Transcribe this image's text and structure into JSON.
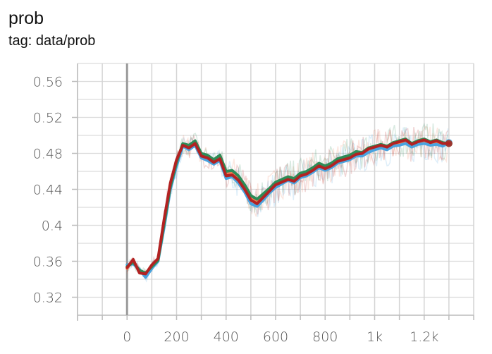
{
  "card": {
    "title": "prob",
    "tag": "tag: data/prob"
  },
  "chart_data": {
    "type": "line",
    "title": "prob",
    "subtitle": "tag: data/prob",
    "xlabel": "",
    "ylabel": "",
    "xlim": [
      -200,
      1400
    ],
    "ylim": [
      0.3,
      0.58
    ],
    "x_ticks": [
      0,
      200,
      400,
      600,
      800,
      1000,
      1200
    ],
    "x_tick_labels": [
      "0",
      "200",
      "400",
      "600",
      "800",
      "1k",
      "1.2k"
    ],
    "y_ticks": [
      0.32,
      0.36,
      0.4,
      0.44,
      0.48,
      0.52,
      0.56
    ],
    "y_tick_labels": [
      "0.32",
      "0.36",
      "0.4",
      "0.44",
      "0.48",
      "0.52",
      "0.56"
    ],
    "grid": true,
    "series": [
      {
        "color": "#f07a52",
        "x": [
          0,
          25,
          50,
          75,
          100,
          125,
          150,
          175,
          200,
          225,
          250,
          275,
          300,
          325,
          350,
          375,
          400,
          425,
          450,
          475,
          500,
          525,
          550,
          575,
          600,
          625,
          650,
          675,
          700,
          725,
          750,
          775,
          800,
          825,
          850,
          875,
          900,
          925,
          950,
          975,
          1000,
          1025,
          1050,
          1075,
          1100,
          1125,
          1150,
          1175,
          1200,
          1225,
          1250,
          1275,
          1300
        ],
        "y": [
          0.352,
          0.361,
          0.348,
          0.345,
          0.355,
          0.362,
          0.405,
          0.445,
          0.472,
          0.49,
          0.487,
          0.492,
          0.478,
          0.476,
          0.471,
          0.475,
          0.457,
          0.458,
          0.452,
          0.442,
          0.43,
          0.426,
          0.432,
          0.439,
          0.446,
          0.449,
          0.452,
          0.45,
          0.456,
          0.458,
          0.462,
          0.467,
          0.464,
          0.467,
          0.472,
          0.474,
          0.476,
          0.48,
          0.479,
          0.484,
          0.486,
          0.488,
          0.486,
          0.49,
          0.492,
          0.494,
          0.489,
          0.492,
          0.494,
          0.491,
          0.493,
          0.49,
          0.491
        ]
      },
      {
        "color": "#4aa3df",
        "x": [
          0,
          25,
          50,
          75,
          100,
          125,
          150,
          175,
          200,
          225,
          250,
          275,
          300,
          325,
          350,
          375,
          400,
          425,
          450,
          475,
          500,
          525,
          550,
          575,
          600,
          625,
          650,
          675,
          700,
          725,
          750,
          775,
          800,
          825,
          850,
          875,
          900,
          925,
          950,
          975,
          1000,
          1025,
          1050,
          1075,
          1100,
          1125,
          1150,
          1175,
          1200,
          1225,
          1250,
          1275,
          1300
        ],
        "y": [
          0.356,
          0.357,
          0.351,
          0.342,
          0.352,
          0.36,
          0.398,
          0.44,
          0.466,
          0.488,
          0.484,
          0.489,
          0.475,
          0.472,
          0.468,
          0.472,
          0.452,
          0.454,
          0.447,
          0.437,
          0.424,
          0.421,
          0.428,
          0.436,
          0.442,
          0.446,
          0.45,
          0.447,
          0.453,
          0.455,
          0.459,
          0.464,
          0.461,
          0.464,
          0.469,
          0.471,
          0.473,
          0.477,
          0.477,
          0.481,
          0.484,
          0.486,
          0.484,
          0.488,
          0.489,
          0.491,
          0.487,
          0.49,
          0.491,
          0.489,
          0.49,
          0.488,
          0.492
        ]
      },
      {
        "color": "#2e8b57",
        "x": [
          0,
          25,
          50,
          75,
          100,
          125,
          150,
          175,
          200,
          225,
          250,
          275,
          300,
          325,
          350,
          375,
          400,
          425,
          450,
          475,
          500,
          525,
          550,
          575,
          600,
          625,
          650,
          675,
          700,
          725,
          750,
          775,
          800,
          825,
          850,
          875,
          900,
          925,
          950,
          975,
          1000,
          1025,
          1050,
          1075,
          1100,
          1125,
          1150,
          1175,
          1200,
          1225,
          1250,
          1275,
          1300
        ],
        "y": [
          0.354,
          0.359,
          0.35,
          0.347,
          0.354,
          0.361,
          0.402,
          0.443,
          0.47,
          0.491,
          0.489,
          0.494,
          0.48,
          0.478,
          0.473,
          0.478,
          0.46,
          0.461,
          0.455,
          0.445,
          0.433,
          0.429,
          0.435,
          0.441,
          0.448,
          0.451,
          0.454,
          0.452,
          0.458,
          0.46,
          0.464,
          0.469,
          0.466,
          0.469,
          0.474,
          0.476,
          0.478,
          0.482,
          0.481,
          0.486,
          0.488,
          0.49,
          0.488,
          0.492,
          0.494,
          0.496,
          0.491,
          0.494,
          0.496,
          0.493,
          0.495,
          0.492,
          0.491
        ]
      },
      {
        "color": "#b22222",
        "x": [
          0,
          25,
          50,
          75,
          100,
          125,
          150,
          175,
          200,
          225,
          250,
          275,
          300,
          325,
          350,
          375,
          400,
          425,
          450,
          475,
          500,
          525,
          550,
          575,
          600,
          625,
          650,
          675,
          700,
          725,
          750,
          775,
          800,
          825,
          850,
          875,
          900,
          925,
          950,
          975,
          1000,
          1025,
          1050,
          1075,
          1100,
          1125,
          1150,
          1175,
          1200,
          1225,
          1250,
          1275,
          1300
        ],
        "y": [
          0.353,
          0.362,
          0.347,
          0.346,
          0.356,
          0.363,
          0.407,
          0.447,
          0.473,
          0.489,
          0.486,
          0.491,
          0.477,
          0.475,
          0.47,
          0.474,
          0.455,
          0.456,
          0.45,
          0.44,
          0.428,
          0.424,
          0.431,
          0.438,
          0.445,
          0.448,
          0.451,
          0.449,
          0.455,
          0.457,
          0.461,
          0.466,
          0.463,
          0.466,
          0.471,
          0.473,
          0.475,
          0.479,
          0.48,
          0.485,
          0.487,
          0.489,
          0.487,
          0.491,
          0.493,
          0.495,
          0.49,
          0.493,
          0.495,
          0.492,
          0.494,
          0.491,
          0.491
        ]
      }
    ]
  }
}
